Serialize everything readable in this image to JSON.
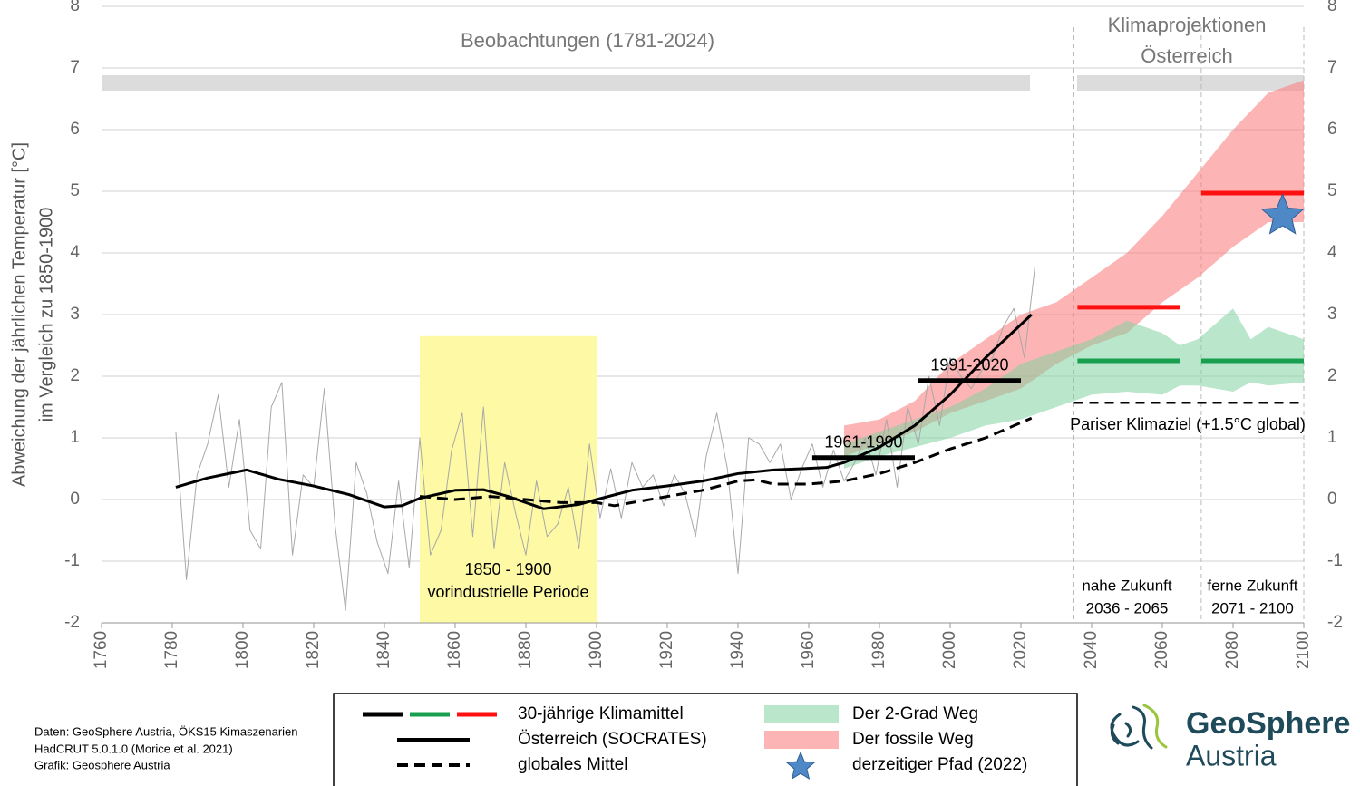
{
  "chart_data": {
    "type": "line",
    "y_label": [
      "Abweichung der jährlichen Temperatur [°C]",
      "im Vergleich zu 1850-1900"
    ],
    "xlim": [
      1760,
      2100
    ],
    "xticks": [
      1760,
      1780,
      1800,
      1820,
      1840,
      1860,
      1880,
      1900,
      1920,
      1940,
      1960,
      1980,
      2000,
      2020,
      2040,
      2060,
      2080,
      2100
    ],
    "ylim": [
      -2,
      8
    ],
    "yticks": [
      -2,
      -1,
      0,
      1,
      2,
      3,
      4,
      5,
      6,
      7,
      8
    ],
    "grid": true,
    "headers": {
      "observations": "Beobachtungen (1781-2024)",
      "projections": [
        "Klimaprojektionen",
        "Österreich"
      ]
    },
    "reference_period": {
      "x": [
        1850,
        1900
      ],
      "top": 2.65,
      "color": "#fdf9a5",
      "label": [
        "1850 - 1900",
        "vorindustrielle Periode"
      ]
    },
    "projection_periods": [
      {
        "x": [
          2035,
          2065
        ],
        "label": [
          "nahe Zukunft",
          "2036 - 2065"
        ]
      },
      {
        "x": [
          2071,
          2100
        ],
        "label": [
          "ferne Zukunft",
          "2071 - 2100"
        ]
      }
    ],
    "reference_line": {
      "x": [
        2035,
        2100
      ],
      "value": 1.57,
      "label": "Pariser Klimaziel (+1.5°C global)"
    },
    "series": [
      {
        "kind": "band",
        "name": "Der fossile Weg",
        "color": "rgba(250,130,130,0.6)",
        "x": [
          1970,
          1980,
          1990,
          2000,
          2010,
          2020,
          2030,
          2040,
          2050,
          2060,
          2070,
          2080,
          2090,
          2100
        ],
        "low": [
          0.7,
          0.9,
          1.1,
          1.4,
          1.6,
          1.8,
          2.2,
          2.5,
          2.7,
          3.2,
          3.6,
          4.1,
          4.5,
          4.5
        ],
        "high": [
          1.2,
          1.3,
          1.6,
          2.2,
          2.6,
          3.0,
          3.2,
          3.6,
          4.0,
          4.6,
          5.3,
          6.0,
          6.6,
          6.8
        ]
      },
      {
        "kind": "band",
        "name": "Der 2-Grad Weg",
        "color": "rgba(130,210,160,0.55)",
        "x": [
          1970,
          1980,
          1990,
          2000,
          2010,
          2020,
          2030,
          2040,
          2050,
          2060,
          2065,
          2070,
          2080,
          2085,
          2090,
          2100
        ],
        "low": [
          0.5,
          0.7,
          0.85,
          1.0,
          1.2,
          1.3,
          1.5,
          1.7,
          1.75,
          1.7,
          1.85,
          1.85,
          1.75,
          1.9,
          1.85,
          1.9
        ],
        "high": [
          0.9,
          1.1,
          1.3,
          1.5,
          1.8,
          2.2,
          2.4,
          2.6,
          2.9,
          2.7,
          2.5,
          2.6,
          3.1,
          2.6,
          2.8,
          2.6
        ]
      },
      {
        "kind": "line",
        "color": "#a8a8a8",
        "width": 1,
        "x": [
          1781,
          1784,
          1787,
          1790,
          1793,
          1796,
          1799,
          1802,
          1805,
          1808,
          1811,
          1814,
          1817,
          1820,
          1823,
          1826,
          1829,
          1832,
          1835,
          1838,
          1841,
          1844,
          1847,
          1850,
          1853,
          1856,
          1859,
          1862,
          1865,
          1868,
          1871,
          1874,
          1877,
          1880,
          1883,
          1886,
          1889,
          1892,
          1895,
          1898,
          1901,
          1904,
          1907,
          1910,
          1913,
          1916,
          1919,
          1922,
          1925,
          1928,
          1931,
          1934,
          1937,
          1940,
          1943,
          1946,
          1949,
          1952,
          1955,
          1958,
          1961,
          1964,
          1967,
          1970,
          1973,
          1976,
          1979,
          1982,
          1985,
          1988,
          1991,
          1994,
          1997,
          2000,
          2003,
          2006,
          2009,
          2012,
          2015,
          2018,
          2021,
          2024
        ],
        "values": [
          1.1,
          -1.3,
          0.4,
          0.9,
          1.7,
          0.2,
          1.3,
          -0.5,
          -0.8,
          1.5,
          1.9,
          -0.9,
          0.4,
          0.2,
          1.8,
          -0.4,
          -1.8,
          0.6,
          0.1,
          -0.7,
          -1.2,
          0.3,
          -1.1,
          1.0,
          -0.9,
          -0.5,
          0.8,
          1.4,
          -0.6,
          1.5,
          -0.8,
          0.6,
          -0.2,
          -0.9,
          0.3,
          -0.6,
          -0.4,
          0.2,
          -0.8,
          0.9,
          -0.3,
          0.5,
          -0.3,
          0.6,
          0.2,
          0.4,
          -0.1,
          0.4,
          0.1,
          -0.6,
          0.7,
          1.4,
          0.5,
          -1.2,
          1.0,
          0.9,
          0.6,
          0.9,
          0.0,
          0.5,
          0.9,
          0.2,
          0.8,
          0.3,
          0.6,
          1.0,
          0.4,
          1.3,
          0.2,
          1.5,
          0.9,
          2.0,
          1.2,
          2.3,
          2.0,
          1.8,
          2.1,
          2.3,
          2.8,
          3.1,
          2.3,
          3.8
        ]
      },
      {
        "kind": "line",
        "name": "globales Mittel",
        "color": "#000000",
        "width": 3,
        "dashed": true,
        "x": [
          1850,
          1860,
          1870,
          1880,
          1890,
          1900,
          1905,
          1910,
          1920,
          1930,
          1940,
          1945,
          1950,
          1960,
          1970,
          1980,
          1990,
          2000,
          2010,
          2023
        ],
        "values": [
          0.05,
          0.0,
          0.05,
          0.0,
          -0.05,
          -0.05,
          -0.1,
          -0.05,
          0.05,
          0.15,
          0.3,
          0.32,
          0.25,
          0.25,
          0.3,
          0.42,
          0.6,
          0.82,
          1.0,
          1.32
        ]
      },
      {
        "kind": "line",
        "name": "Österreich (SOCRATES)",
        "color": "#000000",
        "width": 3,
        "x": [
          1781,
          1790,
          1801,
          1810,
          1820,
          1830,
          1840,
          1845,
          1850,
          1860,
          1868,
          1875,
          1885,
          1895,
          1900,
          1910,
          1920,
          1930,
          1940,
          1950,
          1958,
          1965,
          1970,
          1980,
          1990,
          2000,
          2010,
          2023
        ],
        "values": [
          0.2,
          0.35,
          0.48,
          0.33,
          0.22,
          0.08,
          -0.12,
          -0.1,
          0.02,
          0.15,
          0.16,
          0.05,
          -0.15,
          -0.08,
          0.0,
          0.15,
          0.22,
          0.3,
          0.42,
          0.48,
          0.5,
          0.52,
          0.6,
          0.85,
          1.2,
          1.7,
          2.3,
          3.0
        ]
      },
      {
        "kind": "segments",
        "name": "30-jährige Klimamittel",
        "width": 5,
        "segments": [
          {
            "x": [
              1961,
              1990
            ],
            "value": 0.68,
            "color": "#000000",
            "label": "1961-1990"
          },
          {
            "x": [
              1991,
              2020
            ],
            "value": 1.93,
            "color": "#000000",
            "label": "1991-2020"
          },
          {
            "x": [
              2036,
              2065
            ],
            "value": 2.25,
            "color": "#18a050"
          },
          {
            "x": [
              2071,
              2100
            ],
            "value": 2.25,
            "color": "#18a050"
          },
          {
            "x": [
              2036,
              2065
            ],
            "value": 3.12,
            "color": "#ff1010"
          },
          {
            "x": [
              2071,
              2100
            ],
            "value": 4.97,
            "color": "#ff1010"
          }
        ]
      },
      {
        "kind": "marker",
        "name": "derzeitiger Pfad (2022)",
        "color": "#4f88c6",
        "x": 2094,
        "value": 4.6
      }
    ],
    "footer": [
      "Daten: GeoSphere Austria, ÖKS15 Kimaszenarien",
      "HadCRUT 5.0.1.0 (Morice et al. 2021)",
      "Grafik: Geosphere Austria"
    ],
    "logo": [
      "GeoSphere",
      "Austria"
    ]
  }
}
